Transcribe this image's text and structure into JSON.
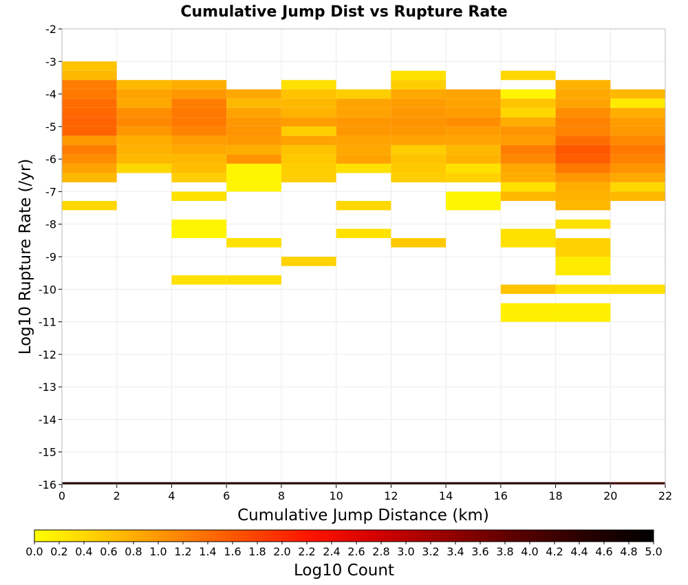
{
  "chart_data": {
    "type": "heatmap",
    "title": "Cumulative Jump Dist vs Rupture Rate",
    "xlabel": "Cumulative Jump Distance (km)",
    "ylabel": "Log10 Rupture Rate (/yr)",
    "xlim": [
      0,
      22
    ],
    "ylim": [
      -16,
      -2
    ],
    "x_ticks": [
      "0",
      "2",
      "4",
      "6",
      "8",
      "10",
      "12",
      "14",
      "16",
      "18",
      "20",
      "22"
    ],
    "y_ticks": [
      "-2",
      "-3",
      "-4",
      "-5",
      "-6",
      "-7",
      "-8",
      "-9",
      "-10",
      "-11",
      "-12",
      "-13",
      "-14",
      "-15",
      "-16"
    ],
    "x_bin_width": 2,
    "y_bin_width": 0.2857,
    "grid": true,
    "colorbar": {
      "label": "Log10 Count",
      "range": [
        0,
        5
      ],
      "ticks": [
        "0.0",
        "0.2",
        "0.4",
        "0.6",
        "0.8",
        "1.0",
        "1.2",
        "1.4",
        "1.6",
        "1.8",
        "2.0",
        "2.2",
        "2.4",
        "2.6",
        "2.8",
        "3.0",
        "3.2",
        "3.4",
        "3.6",
        "3.8",
        "4.0",
        "4.2",
        "4.4",
        "4.6",
        "4.8",
        "5.0"
      ],
      "colors": [
        "#ffff00",
        "#ffc800",
        "#ff8c00",
        "#ff5000",
        "#ff1400",
        "#d20000",
        "#960000",
        "#5a0000",
        "#280000",
        "#000000"
      ]
    },
    "columns": [
      {
        "x": 1,
        "cells": [
          {
            "y": -3.143,
            "v": 0.6
          },
          {
            "y": -3.429,
            "v": 0.7
          },
          {
            "y": -3.714,
            "v": 1.25
          },
          {
            "y": -4.0,
            "v": 1.3
          },
          {
            "y": -4.286,
            "v": 1.4
          },
          {
            "y": -4.571,
            "v": 1.45
          },
          {
            "y": -4.857,
            "v": 1.5
          },
          {
            "y": -5.143,
            "v": 1.5
          },
          {
            "y": -5.429,
            "v": 1.0
          },
          {
            "y": -5.714,
            "v": 1.25
          },
          {
            "y": -6.0,
            "v": 1.1
          },
          {
            "y": -6.286,
            "v": 0.9
          },
          {
            "y": -6.571,
            "v": 0.7
          },
          {
            "y": -7.429,
            "v": 0.4
          }
        ]
      },
      {
        "x": 3,
        "cells": [
          {
            "y": -3.714,
            "v": 0.7
          },
          {
            "y": -4.0,
            "v": 0.9
          },
          {
            "y": -4.286,
            "v": 0.85
          },
          {
            "y": -4.571,
            "v": 1.1
          },
          {
            "y": -4.857,
            "v": 1.15
          },
          {
            "y": -5.143,
            "v": 1.0
          },
          {
            "y": -5.429,
            "v": 0.8
          },
          {
            "y": -5.714,
            "v": 0.75
          },
          {
            "y": -6.0,
            "v": 0.7
          },
          {
            "y": -6.286,
            "v": 0.4
          }
        ]
      },
      {
        "x": 5,
        "cells": [
          {
            "y": -3.714,
            "v": 0.8
          },
          {
            "y": -4.0,
            "v": 1.0
          },
          {
            "y": -4.286,
            "v": 1.25
          },
          {
            "y": -4.571,
            "v": 1.3
          },
          {
            "y": -4.857,
            "v": 1.3
          },
          {
            "y": -5.143,
            "v": 1.2
          },
          {
            "y": -5.429,
            "v": 0.95
          },
          {
            "y": -5.714,
            "v": 0.85
          },
          {
            "y": -6.0,
            "v": 0.7
          },
          {
            "y": -6.286,
            "v": 0.65
          },
          {
            "y": -6.571,
            "v": 0.5
          },
          {
            "y": -7.143,
            "v": 0.3
          },
          {
            "y": -8.0,
            "v": 0.1
          },
          {
            "y": -8.286,
            "v": 0.1
          },
          {
            "y": -9.714,
            "v": 0.3
          }
        ]
      },
      {
        "x": 7,
        "cells": [
          {
            "y": -4.0,
            "v": 0.85
          },
          {
            "y": -4.286,
            "v": 0.7
          },
          {
            "y": -4.571,
            "v": 0.9
          },
          {
            "y": -4.857,
            "v": 1.0
          },
          {
            "y": -5.143,
            "v": 1.05
          },
          {
            "y": -5.429,
            "v": 1.0
          },
          {
            "y": -5.714,
            "v": 0.8
          },
          {
            "y": -6.0,
            "v": 1.05
          },
          {
            "y": -6.286,
            "v": 0.1
          },
          {
            "y": -6.571,
            "v": 0.1
          },
          {
            "y": -6.857,
            "v": 0.1
          },
          {
            "y": -8.571,
            "v": 0.3
          },
          {
            "y": -9.714,
            "v": 0.3
          }
        ]
      },
      {
        "x": 9,
        "cells": [
          {
            "y": -3.714,
            "v": 0.3
          },
          {
            "y": -4.0,
            "v": 0.6
          },
          {
            "y": -4.286,
            "v": 0.7
          },
          {
            "y": -4.571,
            "v": 0.75
          },
          {
            "y": -4.857,
            "v": 0.95
          },
          {
            "y": -5.143,
            "v": 0.5
          },
          {
            "y": -5.429,
            "v": 0.9
          },
          {
            "y": -5.714,
            "v": 0.6
          },
          {
            "y": -6.0,
            "v": 0.55
          },
          {
            "y": -6.286,
            "v": 0.5
          },
          {
            "y": -6.571,
            "v": 0.5
          },
          {
            "y": -9.143,
            "v": 0.45
          }
        ]
      },
      {
        "x": 11,
        "cells": [
          {
            "y": -4.0,
            "v": 0.5
          },
          {
            "y": -4.286,
            "v": 0.9
          },
          {
            "y": -4.571,
            "v": 0.9
          },
          {
            "y": -4.857,
            "v": 1.0
          },
          {
            "y": -5.143,
            "v": 1.0
          },
          {
            "y": -5.429,
            "v": 0.9
          },
          {
            "y": -5.714,
            "v": 0.85
          },
          {
            "y": -6.0,
            "v": 0.9
          },
          {
            "y": -6.286,
            "v": 0.3
          },
          {
            "y": -7.429,
            "v": 0.4
          },
          {
            "y": -8.286,
            "v": 0.3
          }
        ]
      },
      {
        "x": 13,
        "cells": [
          {
            "y": -3.429,
            "v": 0.3
          },
          {
            "y": -3.714,
            "v": 0.5
          },
          {
            "y": -4.0,
            "v": 0.85
          },
          {
            "y": -4.286,
            "v": 0.95
          },
          {
            "y": -4.571,
            "v": 1.0
          },
          {
            "y": -4.857,
            "v": 1.05
          },
          {
            "y": -5.143,
            "v": 1.0
          },
          {
            "y": -5.429,
            "v": 0.9
          },
          {
            "y": -5.714,
            "v": 0.5
          },
          {
            "y": -6.0,
            "v": 0.6
          },
          {
            "y": -6.286,
            "v": 0.55
          },
          {
            "y": -6.571,
            "v": 0.5
          },
          {
            "y": -8.571,
            "v": 0.55
          }
        ]
      },
      {
        "x": 15,
        "cells": [
          {
            "y": -4.0,
            "v": 0.9
          },
          {
            "y": -4.286,
            "v": 0.9
          },
          {
            "y": -4.571,
            "v": 0.95
          },
          {
            "y": -4.857,
            "v": 1.1
          },
          {
            "y": -5.143,
            "v": 0.95
          },
          {
            "y": -5.429,
            "v": 0.9
          },
          {
            "y": -5.714,
            "v": 0.7
          },
          {
            "y": -6.0,
            "v": 0.75
          },
          {
            "y": -6.286,
            "v": 0.3
          },
          {
            "y": -6.571,
            "v": 0.45
          },
          {
            "y": -7.143,
            "v": 0.1
          },
          {
            "y": -7.429,
            "v": 0.1
          }
        ]
      },
      {
        "x": 17,
        "cells": [
          {
            "y": -3.429,
            "v": 0.4
          },
          {
            "y": -4.0,
            "v": 0.1
          },
          {
            "y": -4.286,
            "v": 0.6
          },
          {
            "y": -4.571,
            "v": 0.4
          },
          {
            "y": -4.857,
            "v": 0.8
          },
          {
            "y": -5.143,
            "v": 1.05
          },
          {
            "y": -5.429,
            "v": 0.95
          },
          {
            "y": -5.714,
            "v": 1.25
          },
          {
            "y": -6.0,
            "v": 1.15
          },
          {
            "y": -6.286,
            "v": 0.85
          },
          {
            "y": -6.571,
            "v": 0.8
          },
          {
            "y": -6.857,
            "v": 0.3
          },
          {
            "y": -7.143,
            "v": 0.7
          },
          {
            "y": -8.286,
            "v": 0.3
          },
          {
            "y": -8.571,
            "v": 0.3
          },
          {
            "y": -10.0,
            "v": 0.6
          },
          {
            "y": -10.571,
            "v": 0.15
          },
          {
            "y": -10.857,
            "v": 0.15
          }
        ]
      },
      {
        "x": 19,
        "cells": [
          {
            "y": -3.714,
            "v": 0.75
          },
          {
            "y": -4.0,
            "v": 0.85
          },
          {
            "y": -4.286,
            "v": 0.9
          },
          {
            "y": -4.571,
            "v": 1.1
          },
          {
            "y": -4.857,
            "v": 1.2
          },
          {
            "y": -5.143,
            "v": 1.2
          },
          {
            "y": -5.429,
            "v": 1.4
          },
          {
            "y": -5.714,
            "v": 1.6
          },
          {
            "y": -6.0,
            "v": 1.55
          },
          {
            "y": -6.286,
            "v": 1.3
          },
          {
            "y": -6.571,
            "v": 1.0
          },
          {
            "y": -6.857,
            "v": 0.8
          },
          {
            "y": -7.143,
            "v": 0.75
          },
          {
            "y": -7.429,
            "v": 0.7
          },
          {
            "y": -8.0,
            "v": 0.3
          },
          {
            "y": -8.571,
            "v": 0.45
          },
          {
            "y": -8.857,
            "v": 0.45
          },
          {
            "y": -9.143,
            "v": 0.2
          },
          {
            "y": -9.429,
            "v": 0.2
          },
          {
            "y": -10.0,
            "v": 0.3
          },
          {
            "y": -10.571,
            "v": 0.15
          },
          {
            "y": -10.857,
            "v": 0.15
          }
        ]
      },
      {
        "x": 21,
        "cells": [
          {
            "y": -4.0,
            "v": 0.7
          },
          {
            "y": -4.286,
            "v": 0.2
          },
          {
            "y": -4.571,
            "v": 0.8
          },
          {
            "y": -4.857,
            "v": 0.95
          },
          {
            "y": -5.143,
            "v": 1.0
          },
          {
            "y": -5.429,
            "v": 1.15
          },
          {
            "y": -5.714,
            "v": 1.3
          },
          {
            "y": -6.0,
            "v": 1.2
          },
          {
            "y": -6.286,
            "v": 1.05
          },
          {
            "y": -6.571,
            "v": 0.85
          },
          {
            "y": -6.857,
            "v": 0.4
          },
          {
            "y": -7.143,
            "v": 0.7
          },
          {
            "y": -10.0,
            "v": 0.3
          }
        ]
      }
    ],
    "bottom_band": {
      "y": -16,
      "values": [
        4.6,
        4.6,
        4.6,
        4.6,
        4.6,
        4.6,
        4.6,
        4.6,
        4.6,
        4.6,
        4.2
      ]
    }
  }
}
